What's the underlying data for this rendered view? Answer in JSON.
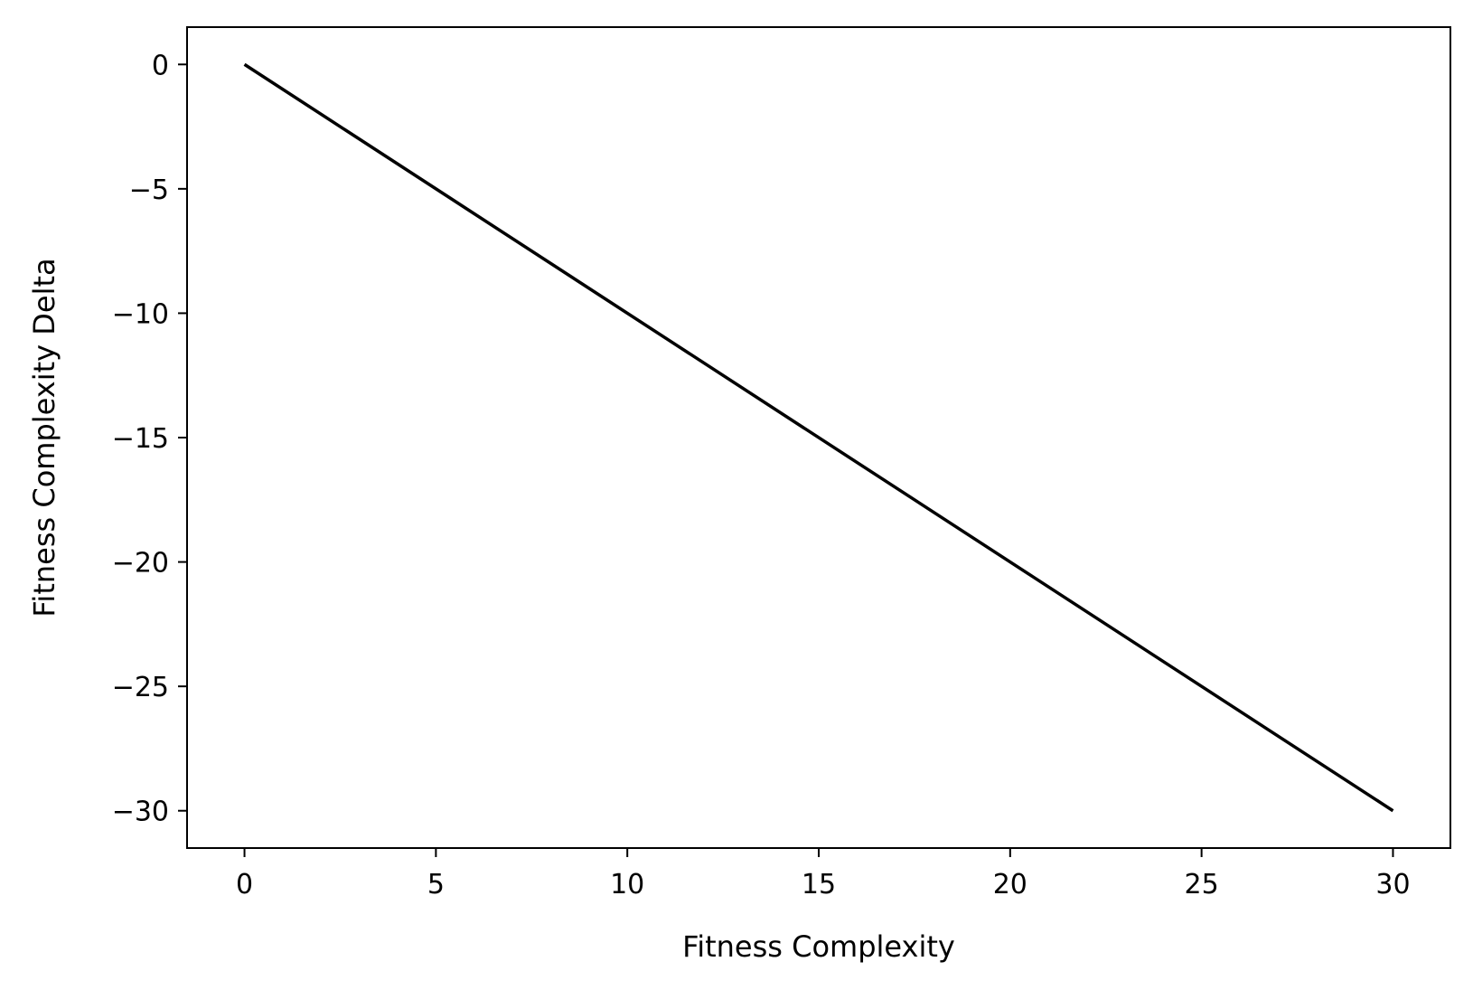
{
  "chart_data": {
    "type": "line",
    "xlabel": "Fitness Complexity",
    "ylabel": "Fitness Complexity Delta",
    "xlim": [
      -1.5,
      31.5
    ],
    "ylim": [
      -31.5,
      1.5
    ],
    "xticks": [
      0,
      5,
      10,
      15,
      20,
      25,
      30
    ],
    "yticks": [
      0,
      -5,
      -10,
      -15,
      -20,
      -25,
      -30
    ],
    "xtick_labels": [
      "0",
      "5",
      "10",
      "15",
      "20",
      "25",
      "30"
    ],
    "ytick_labels": [
      "0",
      "−5",
      "−10",
      "−15",
      "−20",
      "−25",
      "−30"
    ],
    "grid": false,
    "series": [
      {
        "color": "#000000",
        "x": [
          0,
          30
        ],
        "y": [
          0,
          -30
        ]
      }
    ]
  }
}
